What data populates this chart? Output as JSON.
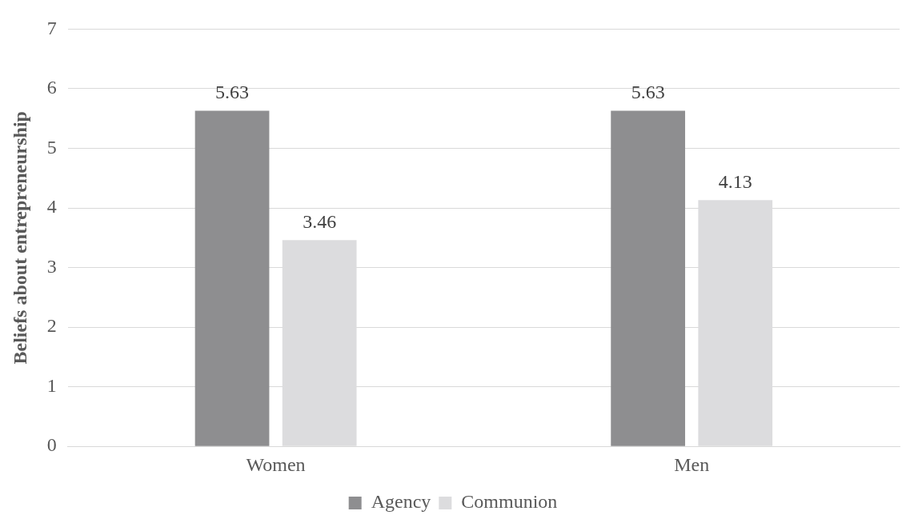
{
  "chart_data": {
    "type": "bar",
    "ylabel": "Beliefs about entrepreneurship",
    "categories": [
      "Women",
      "Men"
    ],
    "series": [
      {
        "name": "Agency",
        "color": "#8e8e90",
        "values": [
          5.63,
          5.63
        ]
      },
      {
        "name": "Communion",
        "color": "#dcdcde",
        "values": [
          3.46,
          4.13
        ]
      }
    ],
    "ylim": [
      0,
      7
    ],
    "yticks": [
      0,
      1,
      2,
      3,
      4,
      5,
      6,
      7
    ],
    "grid": "y",
    "legend": "bottom",
    "data_labels": true
  }
}
